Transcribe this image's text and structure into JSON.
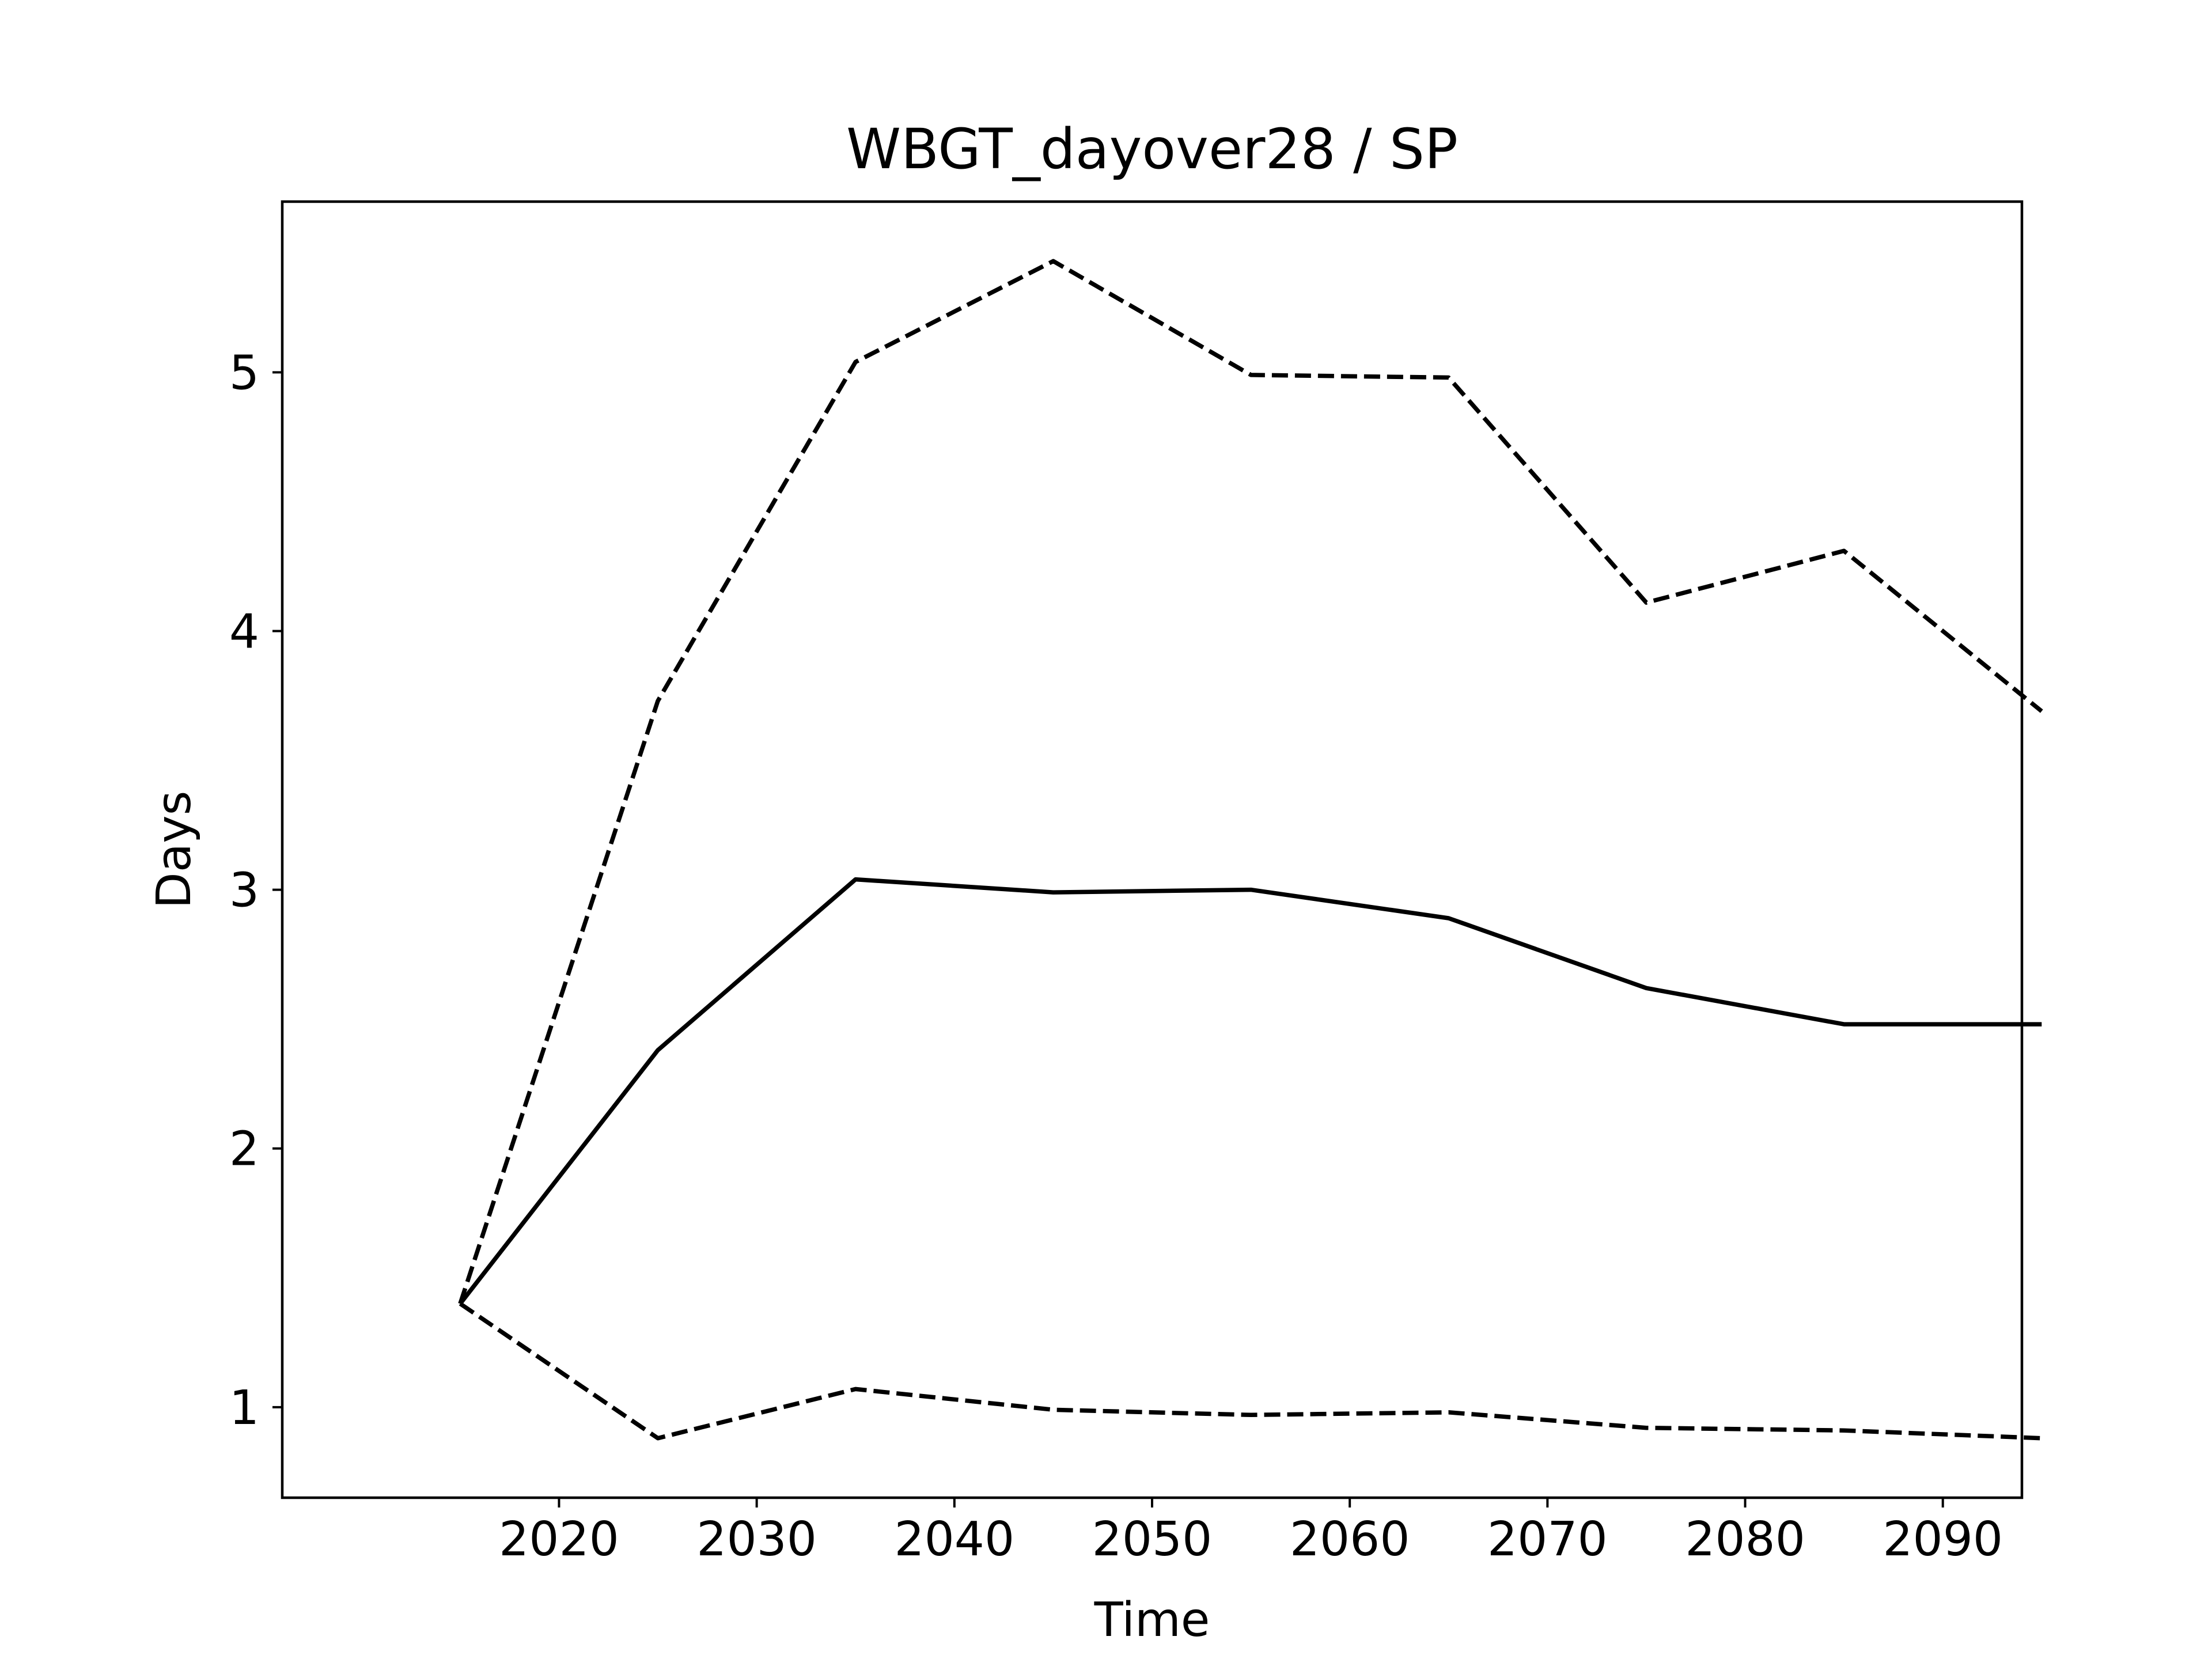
{
  "chart_data": {
    "type": "line",
    "title": "WBGT_dayover28 / SP",
    "xlabel": "Time",
    "ylabel": "Days",
    "x": [
      2015,
      2025,
      2035,
      2045,
      2055,
      2065,
      2075,
      2085,
      2095
    ],
    "xlim": [
      2006,
      2094
    ],
    "ylim": [
      0.65,
      5.66
    ],
    "xticks": [
      2020,
      2030,
      2040,
      2050,
      2060,
      2070,
      2080,
      2090
    ],
    "yticks": [
      1,
      2,
      3,
      4,
      5
    ],
    "grid": false,
    "series": [
      {
        "style": "solid",
        "color": "#000000",
        "values": [
          1.4,
          2.38,
          3.04,
          2.99,
          3.0,
          2.89,
          2.62,
          2.48,
          2.48
        ]
      },
      {
        "style": "dashed",
        "color": "#000000",
        "values": [
          1.4,
          3.73,
          5.04,
          5.43,
          4.99,
          4.98,
          4.11,
          4.31,
          3.69
        ]
      },
      {
        "style": "dashed",
        "color": "#000000",
        "values": [
          1.4,
          0.88,
          1.07,
          0.99,
          0.97,
          0.98,
          0.92,
          0.91,
          0.88
        ]
      }
    ]
  }
}
